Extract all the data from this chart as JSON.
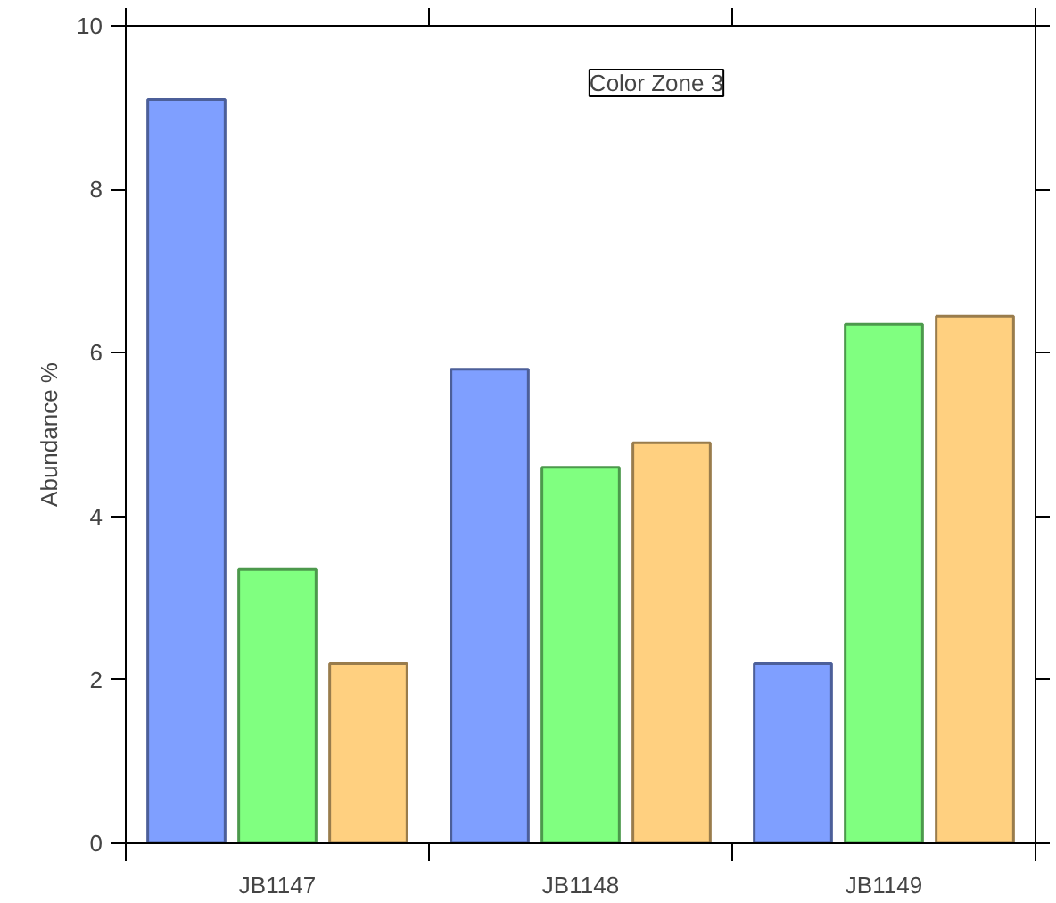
{
  "chart_data": {
    "type": "bar",
    "ylabel": "Abundance %",
    "categories": [
      "JB1147",
      "JB1148",
      "JB1149"
    ],
    "series": [
      {
        "color": "#7f9fff",
        "values": [
          9.1,
          5.8,
          2.2
        ]
      },
      {
        "color": "#80ff80",
        "values": [
          3.35,
          4.6,
          6.35
        ]
      },
      {
        "color": "#ffd080",
        "values": [
          2.2,
          4.9,
          6.45
        ]
      }
    ],
    "annotations": [
      "Color Zone 3"
    ],
    "ylim": [
      0,
      10
    ],
    "yticks": [
      0,
      2,
      4,
      6,
      8,
      10
    ]
  }
}
